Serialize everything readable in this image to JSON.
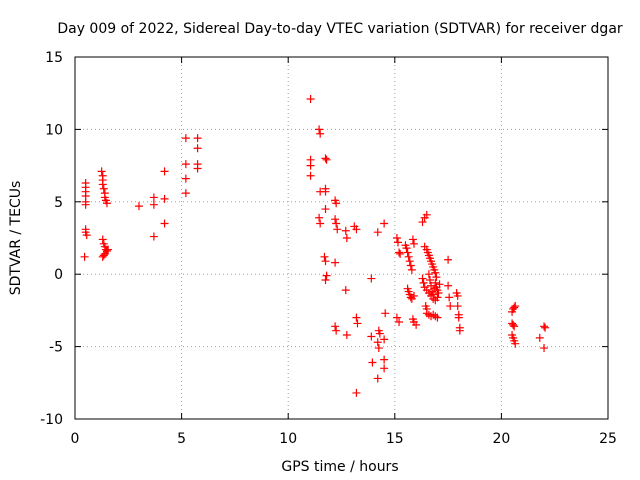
{
  "chart_data": {
    "type": "scatter",
    "title": "Day 009 of 2022, Sidereal Day-to-day VTEC variation (SDTVAR) for receiver dgar",
    "xlabel": "GPS time / hours",
    "ylabel": "SDTVAR / TECUs",
    "xlim": [
      0,
      25
    ],
    "ylim": [
      -10,
      15
    ],
    "x_ticks": [
      0,
      5,
      10,
      15,
      20,
      25
    ],
    "y_ticks": [
      -10,
      -5,
      0,
      5,
      10,
      15
    ],
    "grid": true,
    "marker": "plus",
    "color": "#ff0000",
    "series": [
      {
        "name": "SDTVAR",
        "points": [
          [
            0.5,
            6.3
          ],
          [
            0.5,
            6.0
          ],
          [
            0.5,
            5.7
          ],
          [
            0.5,
            5.4
          ],
          [
            0.5,
            5.0
          ],
          [
            0.5,
            4.8
          ],
          [
            0.5,
            3.1
          ],
          [
            0.5,
            2.9
          ],
          [
            0.55,
            2.7
          ],
          [
            0.45,
            1.2
          ],
          [
            1.25,
            7.1
          ],
          [
            1.3,
            6.8
          ],
          [
            1.3,
            6.5
          ],
          [
            1.3,
            6.2
          ],
          [
            1.35,
            5.9
          ],
          [
            1.4,
            5.6
          ],
          [
            1.4,
            5.3
          ],
          [
            1.45,
            5.1
          ],
          [
            1.5,
            4.9
          ],
          [
            1.3,
            2.4
          ],
          [
            1.35,
            2.1
          ],
          [
            1.4,
            1.9
          ],
          [
            1.45,
            1.7
          ],
          [
            1.5,
            1.6
          ],
          [
            1.4,
            1.4
          ],
          [
            1.35,
            1.3
          ],
          [
            1.3,
            1.2
          ],
          [
            1.55,
            1.7
          ],
          [
            3.0,
            4.7
          ],
          [
            3.7,
            5.3
          ],
          [
            3.7,
            4.8
          ],
          [
            3.7,
            2.6
          ],
          [
            4.2,
            7.1
          ],
          [
            4.2,
            5.2
          ],
          [
            4.2,
            3.5
          ],
          [
            5.2,
            9.4
          ],
          [
            5.2,
            7.6
          ],
          [
            5.2,
            6.6
          ],
          [
            5.2,
            5.6
          ],
          [
            5.75,
            9.4
          ],
          [
            5.75,
            8.7
          ],
          [
            5.75,
            7.6
          ],
          [
            5.75,
            7.3
          ],
          [
            11.05,
            12.1
          ],
          [
            11.05,
            7.9
          ],
          [
            11.05,
            7.5
          ],
          [
            11.05,
            6.8
          ],
          [
            11.45,
            10.0
          ],
          [
            11.5,
            9.7
          ],
          [
            11.5,
            5.7
          ],
          [
            11.45,
            3.9
          ],
          [
            11.5,
            3.5
          ],
          [
            11.75,
            8.0
          ],
          [
            11.8,
            7.9
          ],
          [
            11.75,
            5.9
          ],
          [
            11.75,
            5.7
          ],
          [
            11.75,
            4.5
          ],
          [
            11.7,
            1.2
          ],
          [
            11.75,
            0.9
          ],
          [
            11.8,
            -0.1
          ],
          [
            11.75,
            -0.4
          ],
          [
            12.2,
            5.1
          ],
          [
            12.25,
            4.9
          ],
          [
            12.2,
            3.8
          ],
          [
            12.25,
            3.5
          ],
          [
            12.3,
            3.1
          ],
          [
            12.2,
            0.8
          ],
          [
            12.2,
            -3.6
          ],
          [
            12.25,
            -3.9
          ],
          [
            12.7,
            3.0
          ],
          [
            12.75,
            2.5
          ],
          [
            12.7,
            -1.1
          ],
          [
            12.75,
            -4.2
          ],
          [
            13.1,
            3.3
          ],
          [
            13.2,
            3.1
          ],
          [
            13.2,
            -3.0
          ],
          [
            13.25,
            -3.4
          ],
          [
            13.2,
            -8.2
          ],
          [
            13.9,
            -0.3
          ],
          [
            13.9,
            -4.3
          ],
          [
            13.95,
            -6.1
          ],
          [
            14.2,
            2.9
          ],
          [
            14.25,
            -3.9
          ],
          [
            14.3,
            -4.1
          ],
          [
            14.2,
            -4.7
          ],
          [
            14.25,
            -5.1
          ],
          [
            14.2,
            -7.2
          ],
          [
            14.5,
            3.5
          ],
          [
            14.55,
            -2.7
          ],
          [
            14.5,
            -4.5
          ],
          [
            14.5,
            -5.9
          ],
          [
            14.5,
            -6.5
          ],
          [
            15.1,
            2.5
          ],
          [
            15.15,
            2.2
          ],
          [
            15.2,
            1.5
          ],
          [
            15.25,
            1.4
          ],
          [
            15.1,
            -3.0
          ],
          [
            15.2,
            -3.3
          ],
          [
            15.5,
            2.0
          ],
          [
            15.55,
            1.8
          ],
          [
            15.6,
            1.5
          ],
          [
            15.65,
            1.2
          ],
          [
            15.7,
            0.9
          ],
          [
            15.75,
            0.6
          ],
          [
            15.8,
            0.3
          ],
          [
            15.85,
            2.4
          ],
          [
            15.9,
            2.1
          ],
          [
            15.6,
            -1.0
          ],
          [
            15.65,
            -1.2
          ],
          [
            15.7,
            -1.4
          ],
          [
            15.75,
            -1.6
          ],
          [
            15.8,
            -1.7
          ],
          [
            15.9,
            -1.5
          ],
          [
            15.85,
            -3.1
          ],
          [
            15.9,
            -3.3
          ],
          [
            16.0,
            -3.5
          ],
          [
            16.3,
            3.6
          ],
          [
            16.4,
            3.9
          ],
          [
            16.5,
            4.1
          ],
          [
            16.4,
            1.9
          ],
          [
            16.5,
            1.7
          ],
          [
            16.55,
            1.5
          ],
          [
            16.6,
            1.3
          ],
          [
            16.65,
            1.1
          ],
          [
            16.7,
            0.9
          ],
          [
            16.75,
            0.7
          ],
          [
            16.8,
            0.5
          ],
          [
            16.85,
            0.3
          ],
          [
            16.9,
            0.1
          ],
          [
            16.95,
            -0.2
          ],
          [
            16.3,
            -0.3
          ],
          [
            16.35,
            -0.6
          ],
          [
            16.4,
            -0.9
          ],
          [
            16.5,
            -1.1
          ],
          [
            16.6,
            -1.3
          ],
          [
            16.7,
            -1.5
          ],
          [
            16.8,
            -1.7
          ],
          [
            16.9,
            -1.8
          ],
          [
            17.0,
            -1.6
          ],
          [
            16.6,
            0.0
          ],
          [
            16.65,
            -0.4
          ],
          [
            16.7,
            -0.8
          ],
          [
            16.75,
            -1.2
          ],
          [
            16.8,
            -1.4
          ],
          [
            16.85,
            -1.0
          ],
          [
            16.9,
            -0.6
          ],
          [
            16.95,
            -0.9
          ],
          [
            17.0,
            -1.1
          ],
          [
            17.05,
            -1.3
          ],
          [
            17.1,
            -0.7
          ],
          [
            16.5,
            -2.7
          ],
          [
            16.6,
            -2.8
          ],
          [
            16.7,
            -2.9
          ],
          [
            16.8,
            -2.8
          ],
          [
            16.9,
            -2.9
          ],
          [
            17.0,
            -3.0
          ],
          [
            16.45,
            -2.2
          ],
          [
            16.5,
            -2.4
          ],
          [
            17.5,
            1.0
          ],
          [
            17.5,
            -0.8
          ],
          [
            17.55,
            -1.6
          ],
          [
            17.6,
            -2.2
          ],
          [
            17.9,
            -1.3
          ],
          [
            17.95,
            -1.5
          ],
          [
            17.95,
            -2.2
          ],
          [
            18.0,
            -2.8
          ],
          [
            18.0,
            -3.0
          ],
          [
            18.05,
            -3.7
          ],
          [
            18.05,
            -3.9
          ],
          [
            20.5,
            -2.6
          ],
          [
            20.55,
            -2.4
          ],
          [
            20.6,
            -2.3
          ],
          [
            20.65,
            -2.2
          ],
          [
            20.5,
            -3.4
          ],
          [
            20.55,
            -3.5
          ],
          [
            20.6,
            -3.6
          ],
          [
            20.5,
            -4.2
          ],
          [
            20.55,
            -4.4
          ],
          [
            20.6,
            -4.6
          ],
          [
            20.65,
            -4.8
          ],
          [
            21.8,
            -4.4
          ],
          [
            22.0,
            -3.6
          ],
          [
            22.05,
            -3.7
          ],
          [
            22.0,
            -5.1
          ]
        ]
      }
    ]
  }
}
